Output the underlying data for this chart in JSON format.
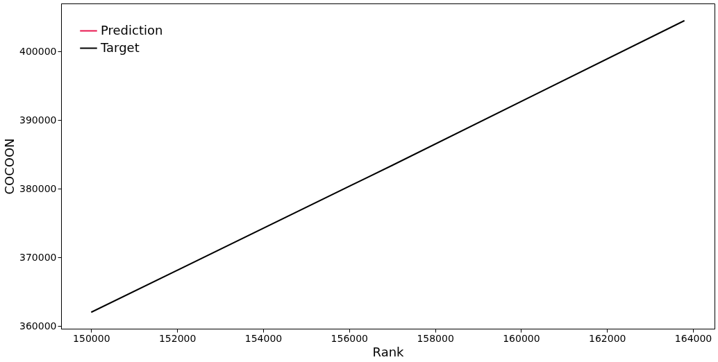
{
  "chart_data": {
    "type": "line",
    "xlabel": "Rank",
    "ylabel": "COCOON",
    "x": [
      150000,
      157000,
      163800
    ],
    "series": [
      {
        "name": "Prediction",
        "color": "#e8174f",
        "values": [
          null,
          null,
          null
        ]
      },
      {
        "name": "Target",
        "color": "#000000",
        "values": [
          362000,
          383400,
          404500
        ]
      }
    ],
    "xlim": [
      149300,
      164500
    ],
    "ylim": [
      359600,
      407000
    ],
    "xticks": [
      150000,
      152000,
      154000,
      156000,
      158000,
      160000,
      162000,
      164000
    ],
    "yticks": [
      360000,
      370000,
      380000,
      390000,
      400000
    ],
    "grid": false,
    "legend": "top left",
    "marker": "none",
    "line_style": "solid"
  }
}
